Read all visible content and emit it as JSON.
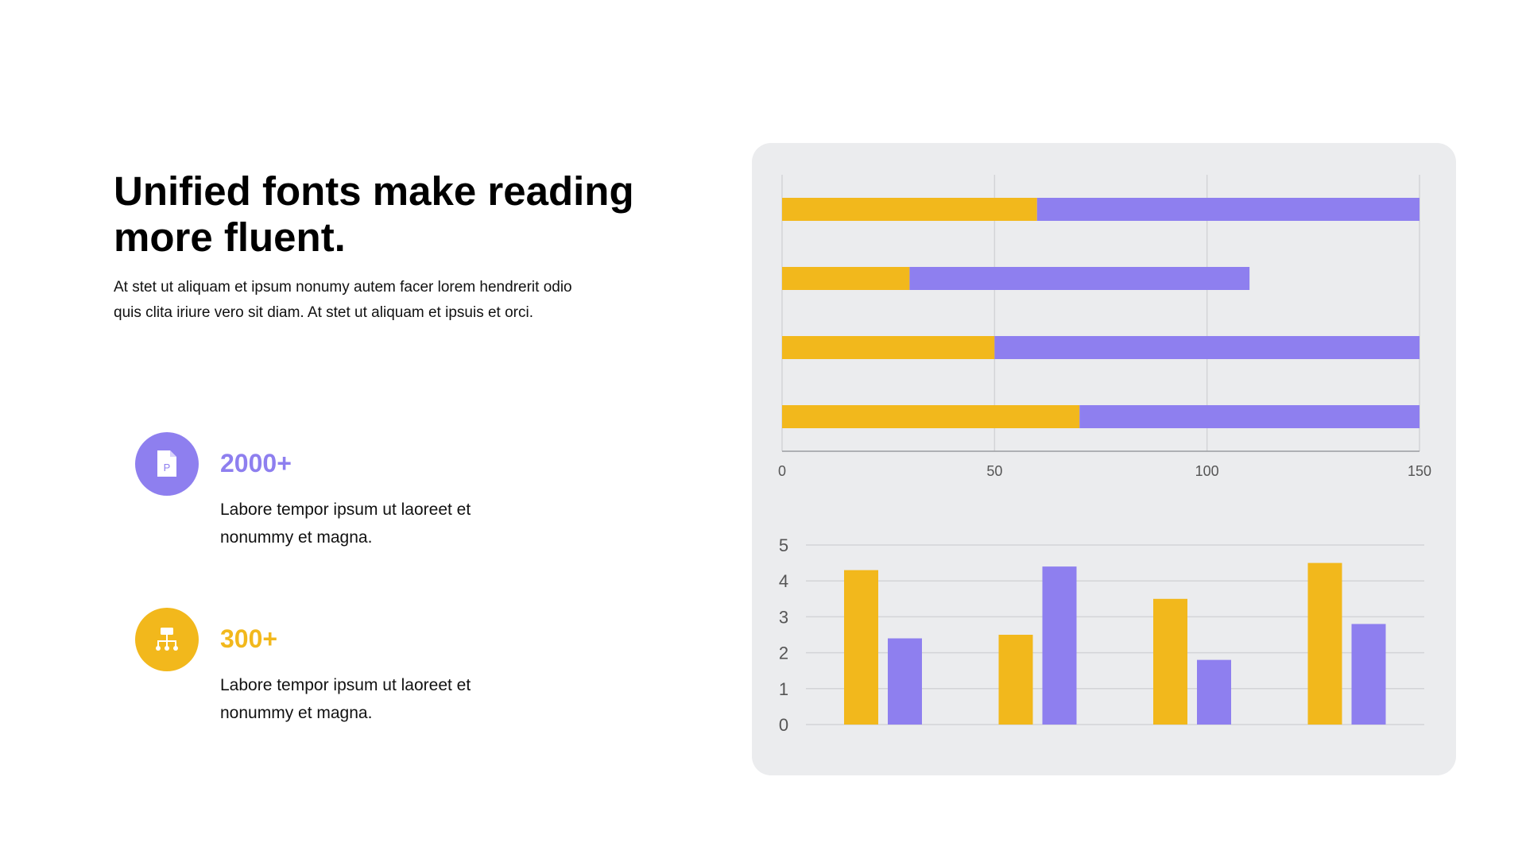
{
  "heading": {
    "title_line1": "Unified fonts make reading",
    "title_line2": "more fluent.",
    "body_line1": "At stet ut aliquam  et ipsum  nonumy  autem facer lorem hendrerit odio",
    "body_line2": "quis  clita iriure vero sit diam.  At stet ut aliquam  et ipsuis et orci."
  },
  "stats": [
    {
      "value": "2000+",
      "desc_line1": "Labore tempor ipsum  ut laoreet et",
      "desc_line2": "nonummy  et magna.",
      "icon": "document-icon",
      "color": "#8e7fef"
    },
    {
      "value": "300+",
      "desc_line1": "Labore tempor ipsum  ut laoreet et",
      "desc_line2": "nonummy  et magna.",
      "icon": "org-chart-icon",
      "color": "#f2b81c"
    }
  ],
  "colors": {
    "series_a": "#f2b81c",
    "series_b": "#8e7fef",
    "panel_bg": "#ebecee",
    "grid": "#d3d4d7",
    "axis_text": "#555555"
  },
  "chart_data": [
    {
      "type": "bar",
      "orientation": "horizontal",
      "stacked": true,
      "categories": [
        "",
        "",
        "",
        ""
      ],
      "series": [
        {
          "values": [
            60,
            30,
            50,
            70
          ]
        },
        {
          "values": [
            90,
            80,
            100,
            80
          ]
        }
      ],
      "xlim": [
        0,
        150
      ],
      "xticks": [
        "0",
        "50",
        "100",
        "150"
      ],
      "grid": true
    },
    {
      "type": "bar",
      "orientation": "vertical",
      "categories": [
        "",
        "",
        "",
        ""
      ],
      "series": [
        {
          "values": [
            4.3,
            2.5,
            3.5,
            4.5
          ]
        },
        {
          "values": [
            2.4,
            4.4,
            1.8,
            2.8
          ]
        }
      ],
      "ylim": [
        0,
        5
      ],
      "yticks": [
        "0",
        "1",
        "2",
        "3",
        "4",
        "5"
      ],
      "grid": true
    }
  ]
}
